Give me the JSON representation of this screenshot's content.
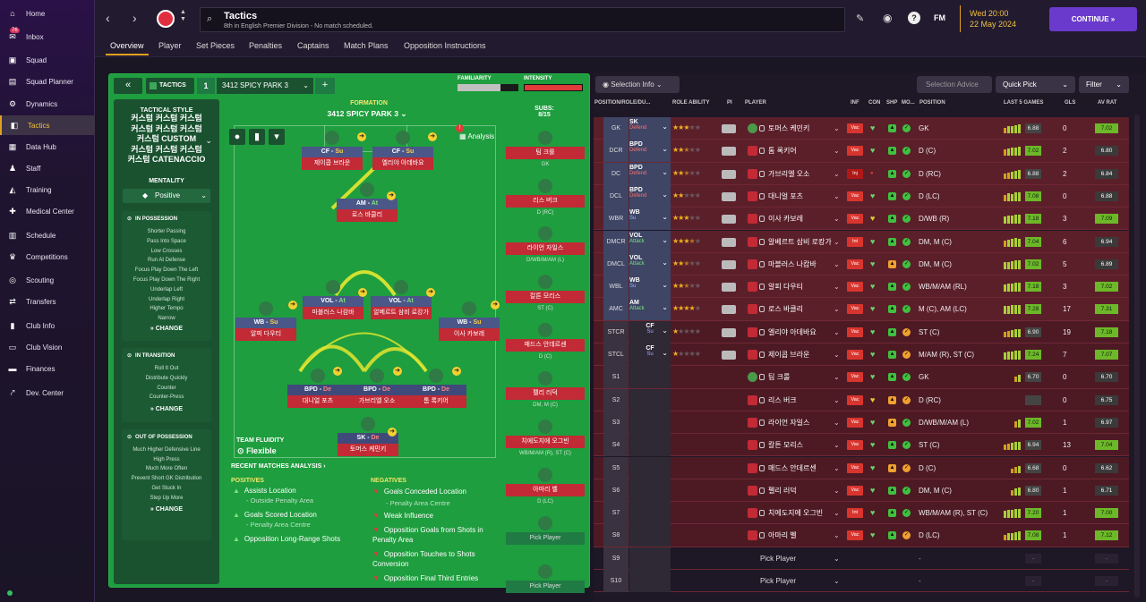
{
  "nav": {
    "items": [
      {
        "label": "Home",
        "icon": "home-icon"
      },
      {
        "label": "Inbox",
        "icon": "inbox-icon",
        "badge": "76"
      },
      {
        "label": "Squad",
        "icon": "shirt-icon"
      },
      {
        "label": "Squad Planner",
        "icon": "planner-icon"
      },
      {
        "label": "Dynamics",
        "icon": "dynamics-icon"
      },
      {
        "label": "Tactics",
        "icon": "tactics-icon"
      },
      {
        "label": "Data Hub",
        "icon": "datahub-icon"
      },
      {
        "label": "Staff",
        "icon": "staff-icon"
      },
      {
        "label": "Training",
        "icon": "training-icon"
      },
      {
        "label": "Medical Center",
        "icon": "medical-icon"
      },
      {
        "label": "Schedule",
        "icon": "calendar-icon"
      },
      {
        "label": "Competitions",
        "icon": "trophy-icon"
      },
      {
        "label": "Scouting",
        "icon": "scouting-icon"
      },
      {
        "label": "Transfers",
        "icon": "transfers-icon"
      },
      {
        "label": "Club Info",
        "icon": "club-info-icon"
      },
      {
        "label": "Club Vision",
        "icon": "club-vision-icon"
      },
      {
        "label": "Finances",
        "icon": "finances-icon"
      },
      {
        "label": "Dev. Center",
        "icon": "dev-center-icon"
      }
    ]
  },
  "header": {
    "title": "Tactics",
    "subtitle": "8th in English Premier Division - No match scheduled.",
    "date_day": "Wed 20:00",
    "date": "22 May 2024",
    "continue_label": "CONTINUE",
    "fm_label": "FM"
  },
  "subtabs": [
    "Overview",
    "Player",
    "Set Pieces",
    "Penalties",
    "Captains",
    "Match Plans",
    "Opposition Instructions"
  ],
  "tactic": {
    "tab_label": "TACTICS",
    "slot": "1",
    "name": "3412 SPICY PARK 3",
    "familiarity_label": "FAMILIARITY",
    "intensity_label": "INTENSITY",
    "style_title": "TACTICAL STYLE",
    "style_lines": [
      "커스텀 커스텀 커스텀",
      "커스텀 커스텀 커스텀",
      "커스텀 CUSTOM",
      "커스텀 커스텀 커스텀",
      "커스텀 CATENACCIO"
    ],
    "mentality_title": "MENTALITY",
    "mentality_value": "Positive",
    "in_possession": {
      "title": "IN POSSESSION",
      "items": [
        "Shorter Passing",
        "Pass Into Space",
        "Low Crosses",
        "Run At Defense",
        "Focus Play Down The Left",
        "Focus Play Down The Right",
        "Underlap Left",
        "Underlap Right",
        "Higher Tempo",
        "Narrow"
      ],
      "change": "CHANGE"
    },
    "in_transition": {
      "title": "IN TRANSITION",
      "items": [
        "Roll It Out",
        "Distribute Quickly",
        "Counter",
        "Counter-Press"
      ],
      "change": "CHANGE"
    },
    "out_of_possession": {
      "title": "OUT OF POSSESSION",
      "items": [
        "Much Higher Defensive Line",
        "High Press",
        "Much More Often",
        "Prevent Short GK Distribution",
        "Get Stuck In",
        "Step Up More"
      ],
      "change": "CHANGE"
    },
    "formation_label": "FORMATION",
    "formation_name": "3412 SPICY PARK 3",
    "analysis_label": "Analysis",
    "subs_label": "SUBS:",
    "subs_count": "8/15",
    "team_fluidity_label": "TEAM FLUIDITY",
    "team_fluidity_value": "Flexible",
    "recent_label": "RECENT MATCHES ANALYSIS",
    "positives_label": "POSITIVES",
    "positives": [
      {
        "text": "Assists Location",
        "sub": "- Outside Penalty Area"
      },
      {
        "text": "Goals Scored Location",
        "sub": "- Penalty Area Centre"
      },
      {
        "text": "Opposition Long-Range Shots",
        "sub": ""
      }
    ],
    "negatives_label": "NEGATIVES",
    "negatives": [
      {
        "text": "Goals Conceded Location",
        "sub": "- Penalty Area Centre"
      },
      {
        "text": "Weak Influence",
        "sub": ""
      },
      {
        "text": "Opposition Goals from Shots in Penalty Area",
        "sub": ""
      },
      {
        "text": "Opposition Touches to Shots Conversion",
        "sub": ""
      },
      {
        "text": "Opposition Final Third Entries",
        "sub": ""
      }
    ]
  },
  "pitch_players": [
    {
      "role": "CF",
      "duty": "Su",
      "name": "제이콥 브라운"
    },
    {
      "role": "CF",
      "duty": "Su",
      "name": "엘리야 아데바요"
    },
    {
      "role": "AM",
      "duty": "At",
      "name": "로스 바클리"
    },
    {
      "role": "VOL",
      "duty": "At",
      "name": "마블러스 나캄바"
    },
    {
      "role": "VOL",
      "duty": "At",
      "name": "알베르트 삼비 로캉가"
    },
    {
      "role": "WB",
      "duty": "Su",
      "name": "알피 다우티"
    },
    {
      "role": "WB",
      "duty": "Su",
      "name": "이사 카보레"
    },
    {
      "role": "BPD",
      "duty": "De",
      "name": "대니얼 포츠"
    },
    {
      "role": "BPD",
      "duty": "De",
      "name": "가브리엘 오소"
    },
    {
      "role": "BPD",
      "duty": "De",
      "name": "톰 록키어"
    },
    {
      "role": "SK",
      "duty": "De",
      "name": "토머스 케민키"
    }
  ],
  "subs": [
    {
      "name": "팀 크룰",
      "pos": "GK"
    },
    {
      "name": "리스 버크",
      "pos": "D (RC)"
    },
    {
      "name": "라이언 자일스",
      "pos": "D/WB/M/AM (L)"
    },
    {
      "name": "칼튼 모리스",
      "pos": "ST (C)"
    },
    {
      "name": "매드스 안데르센",
      "pos": "D (C)"
    },
    {
      "name": "펠리 러덕",
      "pos": "DM, M (C)"
    },
    {
      "name": "치에도지에 오그빈",
      "pos": "WB/M/AM (R), ST (C)"
    },
    {
      "name": "아마리 벨",
      "pos": "D (LC)"
    },
    {
      "name": "Pick Player",
      "pos": ""
    },
    {
      "name": "Pick Player",
      "pos": ""
    }
  ],
  "table": {
    "selection_info": "Selection Info",
    "selection_advice": "Selection Advice",
    "quick_pick": "Quick Pick",
    "filter": "Filter",
    "headers": {
      "pos": "POSITION/ROLE/DU...",
      "ability": "ROLE ABILITY",
      "pi": "PI",
      "player": "PLAYER",
      "inf": "INF",
      "con": "CON",
      "shp": "SHP",
      "mo": "MO...",
      "position": "POSITION",
      "last5": "LAST 5 GAMES",
      "gls": "GLS",
      "avrat": "AV RAT"
    },
    "rows": [
      {
        "slot": "GK",
        "role": "SK",
        "duty": "Defend",
        "stars": 3,
        "name": "토머스 케민키",
        "inf": "Vac",
        "position": "GK",
        "last5": "6.88",
        "gls": "0",
        "avrat": "7.02"
      },
      {
        "slot": "DCR",
        "role": "BPD",
        "duty": "Defend",
        "stars": 2.5,
        "name": "톰 록키어",
        "inf": "Vac",
        "position": "D (C)",
        "last5": "7.02",
        "gls": "2",
        "avrat": "6.80"
      },
      {
        "slot": "DC",
        "role": "BPD",
        "duty": "Defend",
        "stars": 2.5,
        "name": "가브리엘 오소",
        "inf": "Inj",
        "position": "D (RC)",
        "last5": "6.88",
        "gls": "2",
        "avrat": "6.84"
      },
      {
        "slot": "DCL",
        "role": "BPD",
        "duty": "Defend",
        "stars": 2,
        "name": "대니얼 포츠",
        "inf": "Vac",
        "position": "D (LC)",
        "last5": "7.08",
        "gls": "0",
        "avrat": "6.88"
      },
      {
        "slot": "WBR",
        "role": "WB",
        "duty": "Su",
        "stars": 3,
        "name": "이사 카보레",
        "inf": "Vac",
        "position": "D/WB (R)",
        "last5": "7.18",
        "gls": "3",
        "avrat": "7.09"
      },
      {
        "slot": "DMCR",
        "role": "VOL",
        "duty": "Attack",
        "stars": 3.5,
        "name": "알베르트 삼비 로캉가",
        "inf": "Int",
        "position": "DM, M (C)",
        "last5": "7.04",
        "gls": "6",
        "avrat": "6.94"
      },
      {
        "slot": "DMCL",
        "role": "VOL",
        "duty": "Attack",
        "stars": 2.5,
        "name": "마블러스 나캄바",
        "inf": "Vac",
        "position": "DM, M (C)",
        "last5": "7.02",
        "gls": "5",
        "avrat": "6.89"
      },
      {
        "slot": "WBL",
        "role": "WB",
        "duty": "Su",
        "stars": 2.5,
        "name": "알피 다우티",
        "inf": "Vac",
        "position": "WB/M/AM (RL)",
        "last5": "7.18",
        "gls": "3",
        "avrat": "7.02"
      },
      {
        "slot": "AMC",
        "role": "AM",
        "duty": "Attack",
        "stars": 4,
        "name": "로스 바클리",
        "inf": "Vac",
        "position": "M (C), AM (LC)",
        "last5": "7.28",
        "gls": "17",
        "avrat": "7.31"
      },
      {
        "slot": "STCR",
        "role": "CF",
        "duty": "Su",
        "stars": 1,
        "name": "엘리야 아데바요",
        "inf": "Vac",
        "position": "ST (C)",
        "last5": "6.90",
        "gls": "19",
        "avrat": "7.18"
      },
      {
        "slot": "STCL",
        "role": "CF",
        "duty": "Su",
        "stars": 1,
        "name": "제이콥 브라운",
        "inf": "Vac",
        "position": "M/AM (R), ST (C)",
        "last5": "7.24",
        "gls": "7",
        "avrat": "7.07"
      },
      {
        "slot": "S1",
        "role": "",
        "duty": "",
        "stars": 0,
        "name": "팀 크룰",
        "inf": "Vac",
        "position": "GK",
        "last5": "6.70",
        "gls": "0",
        "avrat": "6.70"
      },
      {
        "slot": "S2",
        "role": "",
        "duty": "",
        "stars": 0,
        "name": "리스 버크",
        "inf": "Vac",
        "position": "D (RC)",
        "last5": "",
        "gls": "0",
        "avrat": "6.75"
      },
      {
        "slot": "S3",
        "role": "",
        "duty": "",
        "stars": 0,
        "name": "라이언 자일스",
        "inf": "Vac",
        "position": "D/WB/M/AM (L)",
        "last5": "7.02",
        "gls": "1",
        "avrat": "6.97"
      },
      {
        "slot": "S4",
        "role": "",
        "duty": "",
        "stars": 0,
        "name": "칼튼 모리스",
        "inf": "Vac",
        "position": "ST (C)",
        "last5": "6.94",
        "gls": "13",
        "avrat": "7.04"
      },
      {
        "slot": "S5",
        "role": "",
        "duty": "",
        "stars": 0,
        "name": "매드스 안데르센",
        "inf": "Vac",
        "position": "D (C)",
        "last5": "6.68",
        "gls": "0",
        "avrat": "6.62"
      },
      {
        "slot": "S6",
        "role": "",
        "duty": "",
        "stars": 0,
        "name": "펠리 러덕",
        "inf": "Vac",
        "position": "DM, M (C)",
        "last5": "6.80",
        "gls": "1",
        "avrat": "6.71"
      },
      {
        "slot": "S7",
        "role": "",
        "duty": "",
        "stars": 0,
        "name": "치에도지에 오그빈",
        "inf": "Int",
        "position": "WB/M/AM (R), ST (C)",
        "last5": "7.20",
        "gls": "1",
        "avrat": "7.00"
      },
      {
        "slot": "S8",
        "role": "",
        "duty": "",
        "stars": 0,
        "name": "아마리 벨",
        "inf": "Vac",
        "position": "D (LC)",
        "last5": "7.08",
        "gls": "1",
        "avrat": "7.12"
      },
      {
        "slot": "S9",
        "role": "",
        "duty": "",
        "stars": 0,
        "name": "Pick Player",
        "inf": "",
        "position": "-",
        "last5": "-",
        "gls": "",
        "avrat": "-"
      },
      {
        "slot": "S10",
        "role": "",
        "duty": "",
        "stars": 0,
        "name": "Pick Player",
        "inf": "",
        "position": "-",
        "last5": "-",
        "gls": "",
        "avrat": "-"
      }
    ]
  }
}
